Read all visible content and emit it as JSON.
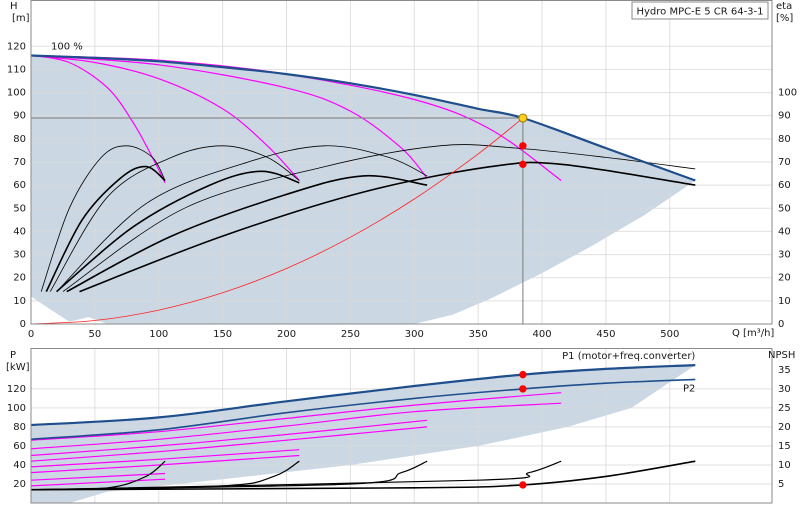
{
  "chart_data": [
    {
      "type": "line",
      "title": "Hydro MPC-E 5 CR 64-3-1",
      "y_label": "H",
      "y_unit": "[m]",
      "y2_label": "eta",
      "y2_unit": "[%]",
      "x_label": "Q [m³/h]",
      "xlim": [
        0,
        580
      ],
      "xticks": [
        0,
        50,
        100,
        150,
        200,
        250,
        300,
        350,
        400,
        450,
        500
      ],
      "ylim": [
        0,
        140
      ],
      "yticks": [
        0,
        10,
        20,
        30,
        40,
        50,
        60,
        70,
        80,
        90,
        100,
        110,
        120
      ],
      "y2lim": [
        0,
        140
      ],
      "y2ticks": [
        0,
        10,
        20,
        30,
        40,
        50,
        60,
        70,
        80,
        90,
        100
      ],
      "grid": true,
      "series": [
        {
          "fill": true,
          "color": "#cbd8e4",
          "x": [
            0,
            50,
            100,
            150,
            200,
            250,
            300,
            350,
            385,
            450,
            520,
            480,
            440,
            400,
            360,
            330,
            300,
            60,
            45,
            30,
            5,
            0
          ],
          "values": [
            116,
            115,
            113.5,
            111,
            108,
            104,
            99,
            93,
            89,
            76,
            62,
            47,
            34,
            22,
            11,
            4,
            0,
            0,
            3,
            1,
            10,
            12
          ]
        },
        {
          "color": "#ff00ff",
          "width": 1.2,
          "x": [
            0,
            30,
            60,
            80,
            95,
            105
          ],
          "values": [
            116,
            113,
            102,
            87,
            72,
            61
          ]
        },
        {
          "color": "#ff00ff",
          "width": 1.2,
          "x": [
            0,
            50,
            100,
            150,
            185,
            210
          ],
          "values": [
            116,
            113,
            106,
            93,
            77,
            62
          ]
        },
        {
          "color": "#ff00ff",
          "width": 1.2,
          "x": [
            0,
            100,
            200,
            250,
            290,
            310
          ],
          "values": [
            116,
            112,
            102,
            92,
            76,
            63
          ]
        },
        {
          "color": "#ff00ff",
          "width": 1.2,
          "x": [
            0,
            100,
            200,
            300,
            360,
            415
          ],
          "values": [
            116,
            114,
            108,
            97,
            84,
            62
          ]
        },
        {
          "axis": "y2",
          "color": "#000000",
          "width": 0.8,
          "x": [
            8,
            30,
            55,
            75,
            95,
            105
          ],
          "values": [
            14,
            50,
            72,
            77,
            72,
            62
          ]
        },
        {
          "axis": "y2",
          "color": "#000000",
          "width": 0.8,
          "x": [
            15,
            60,
            110,
            150,
            185,
            210
          ],
          "values": [
            14,
            55,
            72,
            77,
            72,
            62
          ]
        },
        {
          "axis": "y2",
          "color": "#000000",
          "width": 0.8,
          "x": [
            20,
            90,
            170,
            230,
            280,
            310
          ],
          "values": [
            14,
            52,
            70,
            77,
            72,
            64
          ]
        },
        {
          "axis": "y2",
          "color": "#000000",
          "width": 0.8,
          "x": [
            25,
            120,
            230,
            320,
            380,
            450,
            520
          ],
          "values": [
            14,
            50,
            68,
            77,
            76,
            72,
            67
          ]
        },
        {
          "axis": "y2",
          "color": "#000000",
          "width": 1.6,
          "x": [
            12,
            40,
            70,
            90,
            105
          ],
          "values": [
            14,
            45,
            63,
            68,
            62
          ]
        },
        {
          "axis": "y2",
          "color": "#000000",
          "width": 1.6,
          "x": [
            20,
            80,
            140,
            180,
            210
          ],
          "values": [
            14,
            42,
            60,
            66,
            61
          ]
        },
        {
          "axis": "y2",
          "color": "#000000",
          "width": 1.6,
          "x": [
            28,
            110,
            200,
            260,
            310
          ],
          "values": [
            14,
            38,
            56,
            64,
            60
          ]
        },
        {
          "axis": "y2",
          "color": "#000000",
          "width": 1.6,
          "x": [
            38,
            150,
            260,
            360,
            415,
            520
          ],
          "values": [
            14,
            38,
            57,
            68,
            69,
            60
          ]
        },
        {
          "color": "#ff2020",
          "width": 0.8,
          "x": [
            0,
            50,
            100,
            150,
            200,
            250,
            300,
            350,
            385
          ],
          "values": [
            0,
            1.5,
            6,
            13.5,
            24,
            37.5,
            54,
            73.5,
            89
          ]
        },
        {
          "color": "#7a7a7a",
          "width": 1,
          "x": [
            0,
            385
          ],
          "values": [
            89,
            89
          ]
        },
        {
          "color": "#7a7a7a",
          "width": 1,
          "x": [
            385,
            385
          ],
          "values": [
            89,
            0
          ]
        },
        {
          "name": "100 %",
          "label_at": "start",
          "color": "#1f4e8c",
          "width": 2.2,
          "x": [
            0,
            50,
            100,
            150,
            200,
            250,
            300,
            350,
            385,
            450,
            520
          ],
          "values": [
            116,
            115,
            113.5,
            111,
            108,
            104,
            99,
            93,
            89,
            76,
            62
          ]
        },
        {
          "marker": "circle",
          "color": "#ff0000",
          "x": [
            385,
            385
          ],
          "values": [
            77,
            69
          ]
        },
        {
          "marker": "circle",
          "color": "#ffd21f",
          "x": [
            385
          ],
          "values": [
            89
          ]
        }
      ]
    },
    {
      "type": "line",
      "y_label": "P",
      "y_unit": "[kW]",
      "y2_label": "NPSH",
      "xlim": [
        0,
        580
      ],
      "xticks": [
        0,
        50,
        100,
        150,
        200,
        250,
        300,
        350,
        400,
        450,
        500
      ],
      "ylim": [
        0,
        163
      ],
      "yticks": [
        20,
        40,
        60,
        80,
        100,
        120
      ],
      "y2lim": [
        0,
        40.75
      ],
      "y2ticks": [
        5,
        10,
        15,
        20,
        25,
        30,
        35
      ],
      "grid": true,
      "series": [
        {
          "fill": true,
          "color": "#cbd8e4",
          "x": [
            0,
            100,
            200,
            300,
            385,
            450,
            520,
            470,
            420,
            350,
            250,
            150,
            60,
            30,
            0
          ],
          "values": [
            82,
            90,
            107,
            123,
            135,
            141,
            145,
            100,
            80,
            60,
            40,
            25,
            12,
            0,
            0
          ]
        },
        {
          "color": "#ff00ff",
          "width": 1.2,
          "x": [
            0,
            100,
            200,
            300,
            415
          ],
          "values": [
            66,
            75,
            89,
            103,
            116
          ]
        },
        {
          "color": "#ff00ff",
          "width": 1.2,
          "x": [
            0,
            100,
            200,
            300,
            415
          ],
          "values": [
            57,
            67,
            81,
            96,
            105
          ]
        },
        {
          "color": "#ff00ff",
          "width": 1.2,
          "x": [
            0,
            100,
            200,
            310
          ],
          "values": [
            50,
            60,
            72,
            87
          ]
        },
        {
          "color": "#ff00ff",
          "width": 1.2,
          "x": [
            0,
            100,
            200,
            310
          ],
          "values": [
            44,
            54,
            66,
            80
          ]
        },
        {
          "color": "#ff00ff",
          "width": 1.2,
          "x": [
            0,
            100,
            210
          ],
          "values": [
            38,
            46,
            56
          ]
        },
        {
          "color": "#ff00ff",
          "width": 1.2,
          "x": [
            0,
            100,
            210
          ],
          "values": [
            32,
            40,
            50
          ]
        },
        {
          "color": "#ff00ff",
          "width": 1.2,
          "x": [
            0,
            105
          ],
          "values": [
            24,
            31
          ]
        },
        {
          "color": "#ff00ff",
          "width": 1.2,
          "x": [
            0,
            105
          ],
          "values": [
            18,
            25
          ]
        },
        {
          "axis": "y2",
          "color": "#000000",
          "width": 1.2,
          "x": [
            0,
            60,
            90,
            105
          ],
          "values": [
            3.5,
            4,
            7,
            11
          ]
        },
        {
          "axis": "y2",
          "color": "#000000",
          "width": 1.2,
          "x": [
            0,
            150,
            190,
            210
          ],
          "values": [
            3.5,
            4.5,
            7,
            11
          ]
        },
        {
          "axis": "y2",
          "color": "#000000",
          "width": 1.2,
          "x": [
            0,
            250,
            290,
            310
          ],
          "values": [
            3.5,
            5,
            8,
            11
          ]
        },
        {
          "axis": "y2",
          "color": "#000000",
          "width": 1.2,
          "x": [
            0,
            350,
            390,
            415
          ],
          "values": [
            3.5,
            6,
            8,
            11
          ]
        },
        {
          "axis": "y2",
          "color": "#000000",
          "width": 1.6,
          "x": [
            0,
            300,
            385,
            450,
            520
          ],
          "values": [
            3.5,
            4,
            4.75,
            7,
            11
          ]
        },
        {
          "name": "P2",
          "label_at": "end-below",
          "color": "#1f4e8c",
          "width": 1.6,
          "x": [
            0,
            100,
            200,
            300,
            385,
            450,
            520
          ],
          "values": [
            67,
            77,
            95,
            110,
            120,
            126,
            130
          ]
        },
        {
          "name": "P1 (motor+freq.converter)",
          "label_at": "end-above",
          "color": "#1f4e8c",
          "width": 2.2,
          "x": [
            0,
            100,
            200,
            300,
            385,
            450,
            520
          ],
          "values": [
            82,
            90,
            107,
            123,
            135,
            141,
            145
          ]
        },
        {
          "marker": "circle",
          "color": "#ff0000",
          "x": [
            385,
            385
          ],
          "values": [
            135,
            120
          ]
        },
        {
          "marker": "circle",
          "color": "#ff0000",
          "axis": "y2",
          "x": [
            385
          ],
          "values": [
            4.75
          ]
        }
      ]
    }
  ]
}
